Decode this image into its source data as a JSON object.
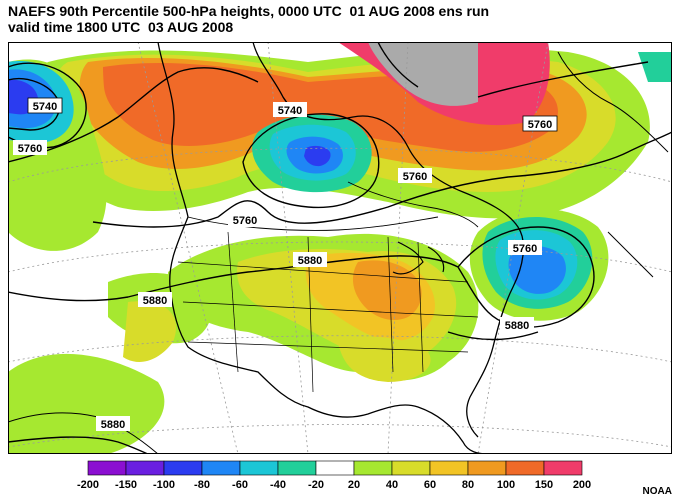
{
  "title": {
    "line1": "NAEFS 90th Percentile 500-hPa heights, 0000 UTC  01 AUG 2008 ens run",
    "line2": "valid time 1800 UTC  03 AUG 2008"
  },
  "contour_labels": [
    {
      "id": "label-5740-west",
      "text": "5740"
    },
    {
      "id": "label-5760-west",
      "text": "5760"
    },
    {
      "id": "label-5740-hudson",
      "text": "5740"
    },
    {
      "id": "label-5760-north",
      "text": "5760"
    },
    {
      "id": "label-5760-quebec",
      "text": "5760"
    },
    {
      "id": "label-5760-plains",
      "text": "5760"
    },
    {
      "id": "label-5880-central",
      "text": "5880"
    },
    {
      "id": "label-5760-atlantic",
      "text": "5760"
    },
    {
      "id": "label-5880-west",
      "text": "5880"
    },
    {
      "id": "label-5880-east",
      "text": "5880"
    },
    {
      "id": "label-5880-pacific",
      "text": "5880"
    }
  ],
  "colorbar": {
    "ticks": [
      "-200",
      "-150",
      "-100",
      "-80",
      "-60",
      "-40",
      "-20",
      "20",
      "40",
      "60",
      "80",
      "100",
      "150",
      "200"
    ],
    "colors": [
      "#8b0fd1",
      "#6a1fe0",
      "#2b3cf0",
      "#1f86f5",
      "#1cc6d6",
      "#22cf9a",
      "#ffffff",
      "#a6e830",
      "#d8dc2a",
      "#f2c425",
      "#f09a20",
      "#f06a28",
      "#f03c6a"
    ]
  },
  "credit": "NOAA"
}
